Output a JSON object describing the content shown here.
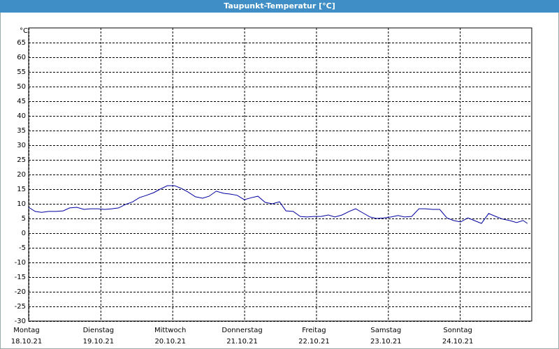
{
  "chart_data": {
    "type": "line",
    "title": "Taupunkt-Temperatur [°C]",
    "y_unit": "°C",
    "xlim": [
      0,
      7
    ],
    "ylim": [
      -30,
      70
    ],
    "xticks": [
      {
        "value": 0,
        "label": "Montag",
        "date": "18.10.21"
      },
      {
        "value": 1,
        "label": "Dienstag",
        "date": "19.10.21"
      },
      {
        "value": 2,
        "label": "Mittwoch",
        "date": "20.10.21"
      },
      {
        "value": 3,
        "label": "Donnerstag",
        "date": "21.10.21"
      },
      {
        "value": 4,
        "label": "Freitag",
        "date": "22.10.21"
      },
      {
        "value": 5,
        "label": "Samstag",
        "date": "23.10.21"
      },
      {
        "value": 6,
        "label": "Sonntag",
        "date": "24.10.21"
      }
    ],
    "yticks": [
      -30,
      -25,
      -20,
      -15,
      -10,
      -5,
      0,
      5,
      10,
      15,
      20,
      25,
      30,
      35,
      40,
      45,
      50,
      55,
      60,
      65
    ],
    "grid": true,
    "series": [
      {
        "color": "#0000a0",
        "x": [
          0,
          0.09,
          0.18,
          0.28,
          0.38,
          0.48,
          0.57,
          0.67,
          0.77,
          0.86,
          0.96,
          1.06,
          1.16,
          1.25,
          1.35,
          1.45,
          1.54,
          1.64,
          1.74,
          1.83,
          1.93,
          2.03,
          2.13,
          2.22,
          2.32,
          2.42,
          2.51,
          2.61,
          2.71,
          2.81,
          2.9,
          3.0,
          3.1,
          3.19,
          3.29,
          3.39,
          3.49,
          3.58,
          3.68,
          3.78,
          3.87,
          3.97,
          4.07,
          4.17,
          4.26,
          4.36,
          4.46,
          4.55,
          4.65,
          4.75,
          4.84,
          4.94,
          5.04,
          5.14,
          5.23,
          5.33,
          5.43,
          5.52,
          5.62,
          5.72,
          5.82,
          5.91,
          6.01,
          6.11,
          6.2,
          6.3,
          6.4,
          6.5,
          6.59,
          6.69,
          6.79,
          6.88,
          6.94
        ],
        "values": [
          8.8,
          7.4,
          7.1,
          7.4,
          7.4,
          7.6,
          8.6,
          8.8,
          8.1,
          8.3,
          8.3,
          8.1,
          8.3,
          8.6,
          9.8,
          10.7,
          12.1,
          12.9,
          13.8,
          15.0,
          16.2,
          16.2,
          15.2,
          14.0,
          12.4,
          11.9,
          12.6,
          14.3,
          13.6,
          13.3,
          12.9,
          11.4,
          12.1,
          12.6,
          10.5,
          10.0,
          10.7,
          7.6,
          7.4,
          5.7,
          5.5,
          5.7,
          5.7,
          6.2,
          5.5,
          6.2,
          7.4,
          8.3,
          6.9,
          5.5,
          5.0,
          5.2,
          5.5,
          6.0,
          5.5,
          5.7,
          8.3,
          8.3,
          8.1,
          8.1,
          5.2,
          4.3,
          3.8,
          5.2,
          4.3,
          3.3,
          6.7,
          5.7,
          4.8,
          4.3,
          3.6,
          4.3,
          3.3
        ]
      }
    ]
  }
}
